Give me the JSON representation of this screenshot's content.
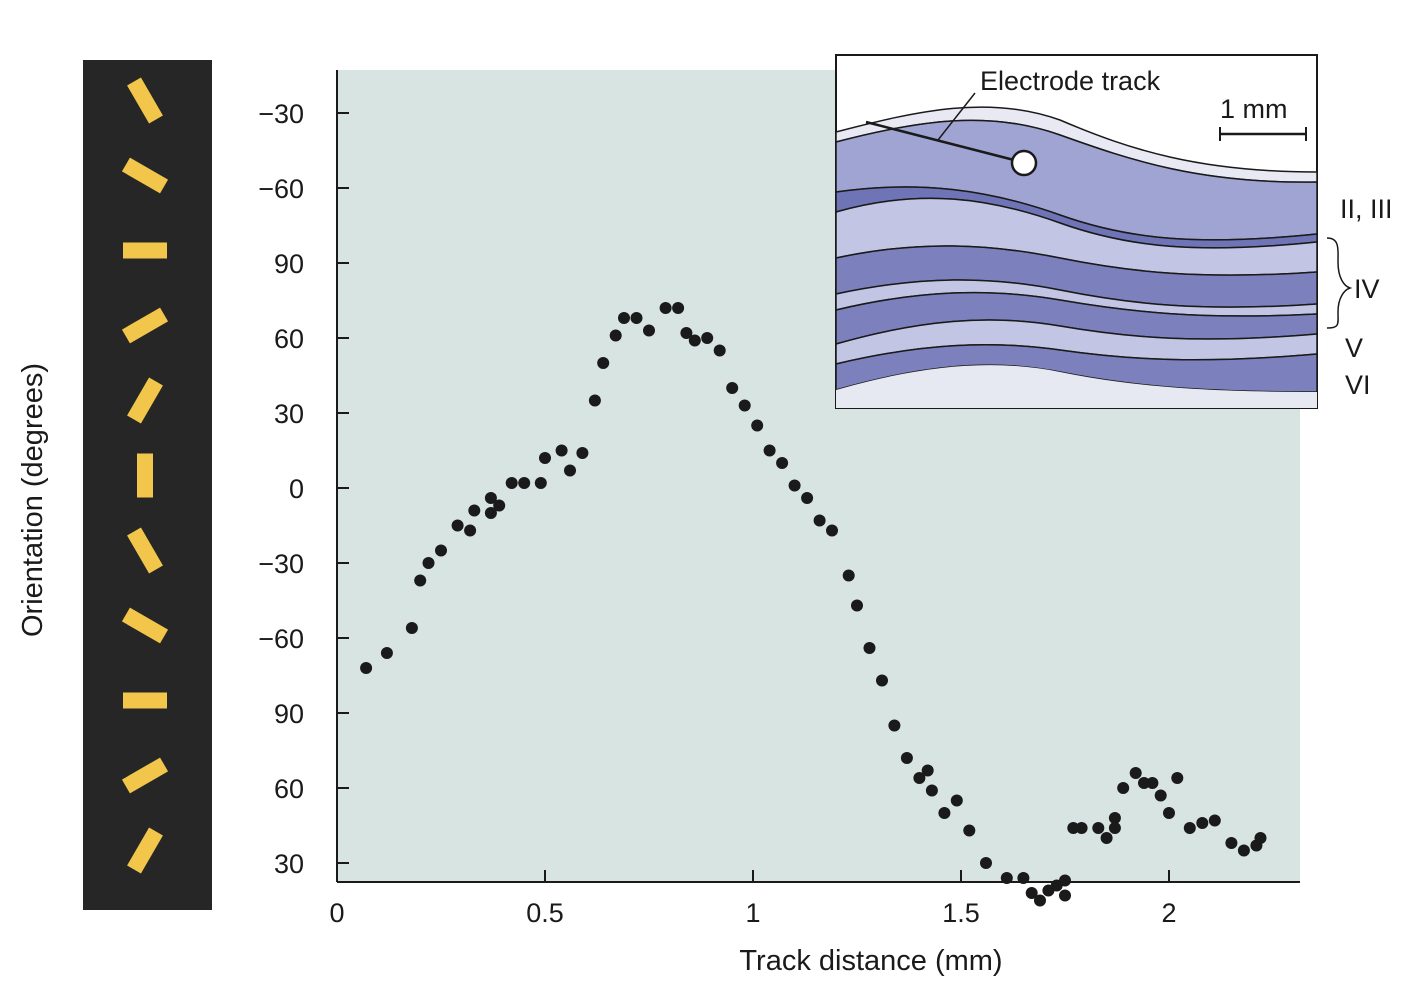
{
  "chart_data": {
    "type": "scatter",
    "title": "",
    "xlabel": "Track distance (mm)",
    "ylabel": "Orientation (degrees)",
    "xlim": [
      0,
      2.3
    ],
    "x_ticks": [
      0,
      0.5,
      1,
      1.5,
      2
    ],
    "x_tick_labels": [
      "0",
      "0.5",
      "1",
      "1.5",
      "2"
    ],
    "y_tick_labels": [
      "−30",
      "−60",
      "90",
      "60",
      "30",
      "0",
      "−30",
      "−60",
      "90",
      "60",
      "30"
    ],
    "y_note": "Vertical axis is cumulative orientation; value = degrees below the top tick (−30 at 0 down to 30 at 300).",
    "ylim": [
      0,
      300
    ],
    "grid": false,
    "points": [
      [
        0.07,
        222
      ],
      [
        0.12,
        216
      ],
      [
        0.18,
        206
      ],
      [
        0.2,
        187
      ],
      [
        0.22,
        180
      ],
      [
        0.25,
        175
      ],
      [
        0.29,
        165
      ],
      [
        0.32,
        167
      ],
      [
        0.33,
        159
      ],
      [
        0.37,
        160
      ],
      [
        0.37,
        154
      ],
      [
        0.39,
        157
      ],
      [
        0.42,
        148
      ],
      [
        0.45,
        148
      ],
      [
        0.49,
        148
      ],
      [
        0.5,
        138
      ],
      [
        0.54,
        135
      ],
      [
        0.56,
        143
      ],
      [
        0.59,
        136
      ],
      [
        0.62,
        115
      ],
      [
        0.64,
        100
      ],
      [
        0.67,
        89
      ],
      [
        0.69,
        82
      ],
      [
        0.72,
        82
      ],
      [
        0.75,
        87
      ],
      [
        0.79,
        78
      ],
      [
        0.82,
        78
      ],
      [
        0.84,
        88
      ],
      [
        0.86,
        91
      ],
      [
        0.89,
        90
      ],
      [
        0.92,
        95
      ],
      [
        0.95,
        110
      ],
      [
        0.98,
        117
      ],
      [
        1.01,
        125
      ],
      [
        1.04,
        135
      ],
      [
        1.07,
        140
      ],
      [
        1.1,
        149
      ],
      [
        1.13,
        154
      ],
      [
        1.16,
        163
      ],
      [
        1.19,
        167
      ],
      [
        1.23,
        185
      ],
      [
        1.25,
        197
      ],
      [
        1.28,
        214
      ],
      [
        1.31,
        227
      ],
      [
        1.34,
        245
      ],
      [
        1.37,
        258
      ],
      [
        1.4,
        266
      ],
      [
        1.42,
        263
      ],
      [
        1.43,
        271
      ],
      [
        1.46,
        280
      ],
      [
        1.49,
        275
      ],
      [
        1.52,
        287
      ],
      [
        1.56,
        300
      ],
      [
        1.61,
        306
      ],
      [
        1.65,
        306
      ],
      [
        1.67,
        312
      ],
      [
        1.69,
        315
      ],
      [
        1.71,
        311
      ],
      [
        1.73,
        309
      ],
      [
        1.75,
        307
      ],
      [
        1.75,
        313
      ],
      [
        1.77,
        286
      ],
      [
        1.79,
        286
      ],
      [
        1.83,
        286
      ],
      [
        1.85,
        290
      ],
      [
        1.87,
        282
      ],
      [
        1.87,
        286
      ],
      [
        1.89,
        270
      ],
      [
        1.92,
        264
      ],
      [
        1.94,
        268
      ],
      [
        1.96,
        268
      ],
      [
        1.98,
        273
      ],
      [
        2.0,
        280
      ],
      [
        2.02,
        266
      ],
      [
        2.05,
        286
      ],
      [
        2.08,
        284
      ],
      [
        2.11,
        283
      ],
      [
        2.15,
        292
      ],
      [
        2.18,
        295
      ],
      [
        2.21,
        293
      ],
      [
        2.22,
        290
      ]
    ],
    "inset": {
      "track_label": "Electrode track",
      "scale_label": "1 mm",
      "layer_labels": [
        "II, III",
        "IV",
        "V",
        "VI"
      ]
    },
    "orientation_bar": {
      "angles_deg": [
        60,
        30,
        0,
        -30,
        -60,
        90,
        60,
        30,
        0,
        -30,
        -60
      ]
    },
    "colors": {
      "plot_background": "#d7e4e1",
      "orientation_bar": "#262626",
      "bar_glyph": "#f2c64a",
      "layer_light": "#c2c6e4",
      "layer_dark": "#8388c0",
      "marker": "#1a1a1a"
    }
  }
}
